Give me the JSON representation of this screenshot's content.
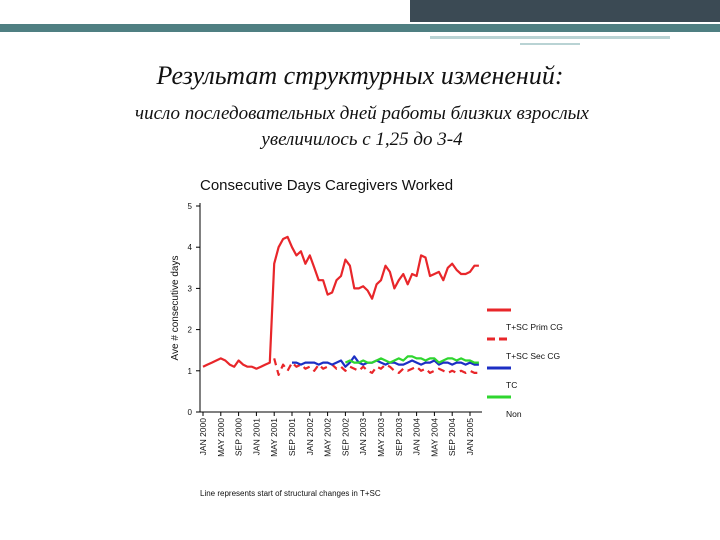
{
  "slide": {
    "title": "Результат структурных изменений:",
    "subtitle": [
      "число последовательных дней работы близких взрослых",
      "увеличилось с 1,25 до 3-4"
    ]
  },
  "chart_data": {
    "type": "line",
    "title": "Consecutive Days Caregivers Worked",
    "y_label": "Ave # consecutive days",
    "note": "Line represents start of structural changes in T+SC",
    "categories": [
      "JAN 2000",
      null,
      null,
      null,
      "MAY 2000",
      null,
      null,
      null,
      "SEP 2000",
      null,
      null,
      null,
      "JAN 2001",
      null,
      null,
      null,
      "MAY 2001",
      null,
      null,
      null,
      "SEP 2001",
      null,
      null,
      null,
      "JAN 2002",
      null,
      null,
      null,
      "MAY 2002",
      null,
      null,
      null,
      "SEP 2002",
      null,
      null,
      null,
      "JAN 2003",
      null,
      null,
      null,
      "MAY 2003",
      null,
      null,
      null,
      "SEP 2003",
      null,
      null,
      null,
      "JAN 2004",
      null,
      null,
      null,
      "MAY 2004",
      null,
      null,
      null,
      "SEP 2004",
      null,
      null,
      null,
      "JAN 2005",
      null,
      null
    ],
    "ylim": [
      0,
      5
    ],
    "yticks": [
      0,
      1,
      2,
      3,
      4,
      5
    ],
    "legend": "right",
    "series": [
      {
        "name": "T+SC Prim CG",
        "color": "#e8262a",
        "dash": false,
        "values": [
          1.1,
          1.15,
          1.2,
          1.25,
          1.3,
          1.25,
          1.15,
          1.1,
          1.25,
          1.15,
          1.1,
          1.1,
          1.05,
          1.1,
          1.15,
          1.2,
          3.6,
          4.0,
          4.2,
          4.25,
          4.0,
          3.8,
          3.9,
          3.6,
          3.8,
          3.5,
          3.2,
          3.2,
          2.85,
          2.9,
          3.2,
          3.3,
          3.7,
          3.55,
          3.0,
          3.0,
          3.05,
          2.95,
          2.75,
          3.1,
          3.2,
          3.55,
          3.4,
          3.0,
          3.2,
          3.35,
          3.1,
          3.35,
          3.3,
          3.8,
          3.75,
          3.3,
          3.35,
          3.4,
          3.2,
          3.5,
          3.6,
          3.45,
          3.35,
          3.35,
          3.4,
          3.55,
          3.55
        ]
      },
      {
        "name": "T+SC Sec CG",
        "color": "#e8262a",
        "dash": true,
        "values": [
          null,
          null,
          null,
          null,
          null,
          null,
          null,
          null,
          null,
          null,
          null,
          null,
          null,
          null,
          null,
          null,
          1.3,
          0.9,
          1.15,
          1.0,
          1.2,
          1.1,
          1.15,
          1.05,
          1.1,
          1.0,
          1.15,
          1.05,
          1.1,
          1.15,
          1.05,
          1.1,
          1.0,
          1.1,
          1.05,
          1.0,
          1.1,
          1.0,
          0.95,
          1.1,
          1.05,
          1.15,
          1.1,
          1.0,
          0.95,
          1.05,
          1.0,
          1.05,
          1.1,
          1.0,
          1.05,
          0.95,
          1.0,
          1.05,
          1.0,
          0.95,
          1.0,
          0.95,
          1.0,
          0.95,
          1.0,
          0.95,
          0.95
        ]
      },
      {
        "name": "TC",
        "color": "#1c2fc4",
        "dash": false,
        "values": [
          null,
          null,
          null,
          null,
          null,
          null,
          null,
          null,
          null,
          null,
          null,
          null,
          null,
          null,
          null,
          null,
          null,
          null,
          null,
          null,
          1.2,
          1.2,
          1.15,
          1.2,
          1.2,
          1.2,
          1.15,
          1.2,
          1.2,
          1.15,
          1.2,
          1.25,
          1.1,
          1.2,
          1.35,
          1.2,
          1.15,
          1.2,
          1.2,
          1.25,
          1.2,
          1.15,
          1.2,
          1.2,
          1.15,
          1.15,
          1.2,
          1.25,
          1.2,
          1.15,
          1.2,
          1.2,
          1.25,
          1.15,
          1.2,
          1.2,
          1.15,
          1.2,
          1.2,
          1.15,
          1.2,
          1.15,
          1.15
        ]
      },
      {
        "name": "Non",
        "color": "#2fd62f",
        "dash": false,
        "values": [
          null,
          null,
          null,
          null,
          null,
          null,
          null,
          null,
          null,
          null,
          null,
          null,
          null,
          null,
          null,
          null,
          null,
          null,
          null,
          null,
          null,
          null,
          null,
          null,
          null,
          null,
          null,
          null,
          null,
          null,
          null,
          null,
          1.2,
          1.25,
          1.2,
          1.2,
          1.25,
          1.2,
          1.2,
          1.25,
          1.3,
          1.25,
          1.2,
          1.25,
          1.3,
          1.25,
          1.35,
          1.35,
          1.3,
          1.3,
          1.25,
          1.3,
          1.3,
          1.2,
          1.25,
          1.3,
          1.3,
          1.25,
          1.3,
          1.25,
          1.25,
          1.2,
          1.2
        ]
      }
    ]
  }
}
